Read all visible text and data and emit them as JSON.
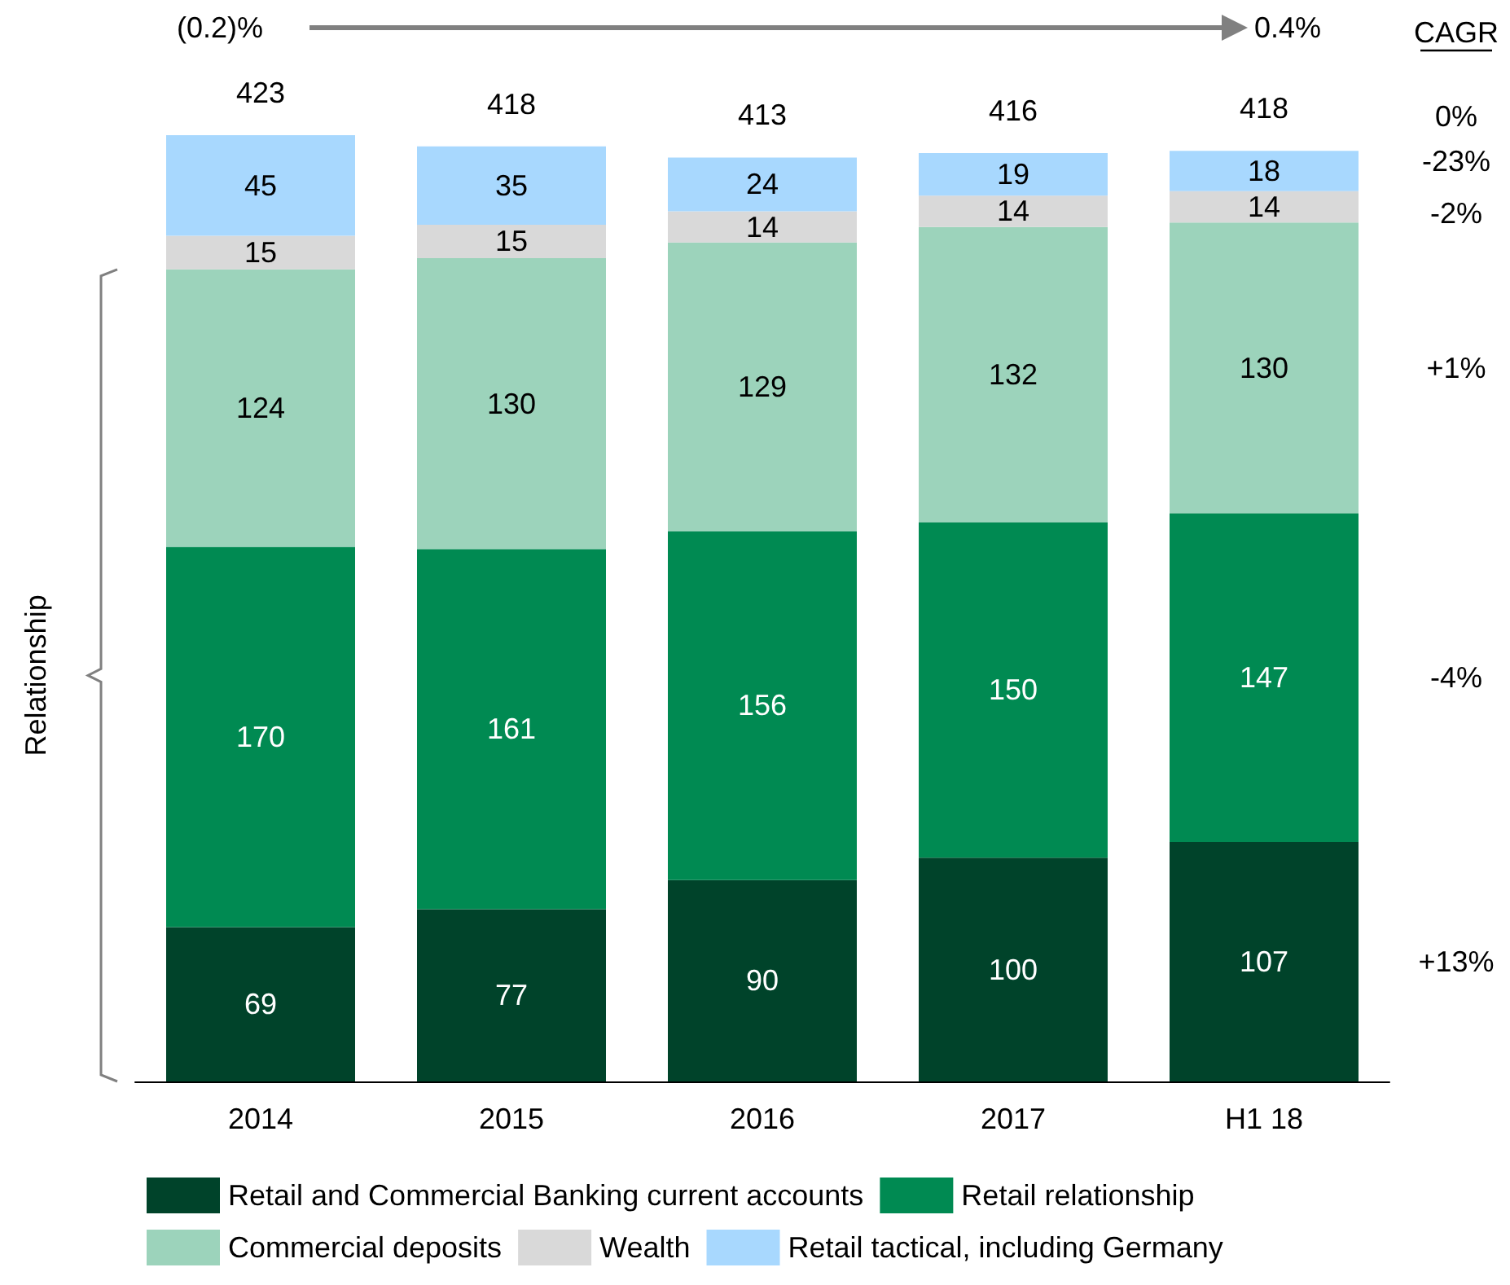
{
  "chart_data": {
    "type": "bar",
    "stacked": true,
    "data_labels": true,
    "legend": "bottom",
    "ylabel": "Relationship",
    "categories": [
      "2014",
      "2015",
      "2016",
      "2017",
      "H1 18"
    ],
    "series": [
      {
        "name": "Retail and Commercial Banking current accounts",
        "color": "#00432a",
        "values": [
          69,
          77,
          90,
          100,
          107
        ]
      },
      {
        "name": "Retail relationship",
        "color": "#008a52",
        "values": [
          170,
          161,
          156,
          150,
          147
        ]
      },
      {
        "name": "Commercial deposits",
        "color": "#9cd3bb",
        "values": [
          124,
          130,
          129,
          132,
          130
        ]
      },
      {
        "name": "Wealth",
        "color": "#d9d9d9",
        "values": [
          15,
          15,
          14,
          14,
          14
        ]
      },
      {
        "name": "Retail tactical, including Germany",
        "color": "#a8d8fe",
        "values": [
          45,
          35,
          24,
          19,
          18
        ]
      }
    ],
    "totals": [
      "423",
      "418",
      "413",
      "416",
      "418"
    ],
    "annotations": [
      "(0.2)%",
      "0.4%",
      "CAGR",
      "0%",
      "-23%",
      "-2%",
      "+1%",
      "-4%",
      "+13%"
    ]
  }
}
